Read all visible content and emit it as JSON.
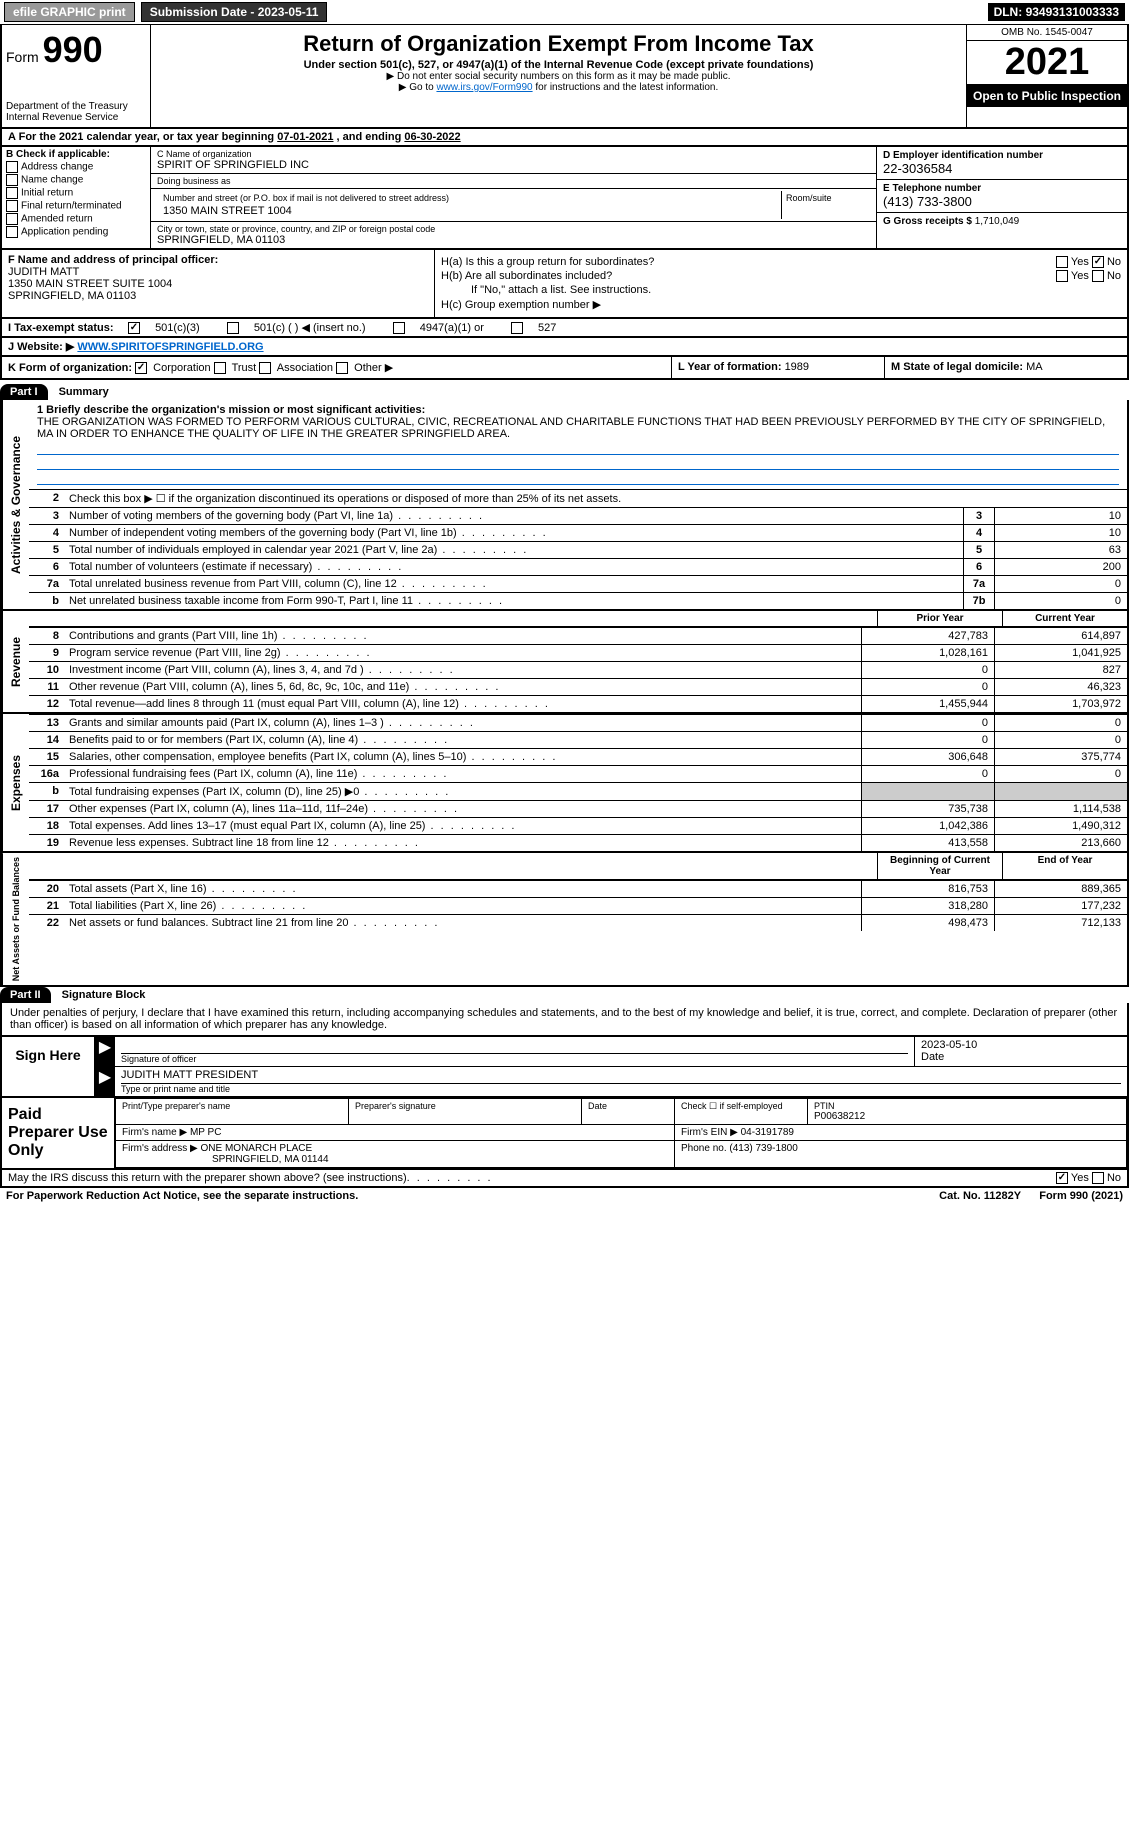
{
  "topbar": {
    "efile": "efile GRAPHIC print",
    "submission_label": "Submission Date - ",
    "submission_date": "2023-05-11",
    "dln_label": "DLN: ",
    "dln": "93493131003333"
  },
  "header": {
    "form_label": "Form",
    "form_number": "990",
    "dept": "Department of the Treasury",
    "irs": "Internal Revenue Service",
    "title": "Return of Organization Exempt From Income Tax",
    "subtitle": "Under section 501(c), 527, or 4947(a)(1) of the Internal Revenue Code (except private foundations)",
    "note1": "▶ Do not enter social security numbers on this form as it may be made public.",
    "note2_pre": "▶ Go to ",
    "note2_link": "www.irs.gov/Form990",
    "note2_post": " for instructions and the latest information.",
    "omb": "OMB No. 1545-0047",
    "year": "2021",
    "open": "Open to Public Inspection"
  },
  "taxyear": {
    "text_pre": "For the 2021 calendar year, or tax year beginning ",
    "begin": "07-01-2021",
    "text_mid": " , and ending ",
    "end": "06-30-2022"
  },
  "boxB": {
    "label": "B Check if applicable:",
    "opts": [
      "Address change",
      "Name change",
      "Initial return",
      "Final return/terminated",
      "Amended return",
      "Application pending"
    ]
  },
  "boxC": {
    "name_label": "C Name of organization",
    "name": "SPIRIT OF SPRINGFIELD INC",
    "dba_label": "Doing business as",
    "dba": "",
    "street_label": "Number and street (or P.O. box if mail is not delivered to street address)",
    "street": "1350 MAIN STREET 1004",
    "room_label": "Room/suite",
    "city_label": "City or town, state or province, country, and ZIP or foreign postal code",
    "city": "SPRINGFIELD, MA  01103"
  },
  "boxD": {
    "label": "D Employer identification number",
    "value": "22-3036584"
  },
  "boxE": {
    "label": "E Telephone number",
    "value": "(413) 733-3800"
  },
  "boxG": {
    "label": "G Gross receipts $ ",
    "value": "1,710,049"
  },
  "boxF": {
    "label": "F Name and address of principal officer:",
    "name": "JUDITH MATT",
    "addr1": "1350 MAIN STREET SUITE 1004",
    "addr2": "SPRINGFIELD, MA  01103"
  },
  "boxH": {
    "a": "H(a)  Is this a group return for subordinates?",
    "a_yes": "Yes",
    "a_no": "No",
    "b": "H(b)  Are all subordinates included?",
    "b_yes": "Yes",
    "b_no": "No",
    "b_note": "If \"No,\" attach a list. See instructions.",
    "c": "H(c)  Group exemption number ▶"
  },
  "boxI": {
    "label": "I  Tax-exempt status:",
    "opt1": "501(c)(3)",
    "opt2": "501(c) (  ) ◀ (insert no.)",
    "opt3": "4947(a)(1) or",
    "opt4": "527"
  },
  "boxJ": {
    "label": "J  Website: ▶",
    "value": "WWW.SPIRITOFSPRINGFIELD.ORG"
  },
  "boxK": {
    "label": "K Form of organization:",
    "opts": [
      "Corporation",
      "Trust",
      "Association",
      "Other ▶"
    ]
  },
  "boxL": {
    "label": "L Year of formation: ",
    "value": "1989"
  },
  "boxM": {
    "label": "M State of legal domicile: ",
    "value": "MA"
  },
  "part1": {
    "tab": "Part I",
    "title": "Summary",
    "mission_label": "1 Briefly describe the organization's mission or most significant activities:",
    "mission": "THE ORGANIZATION WAS FORMED TO PERFORM VARIOUS CULTURAL, CIVIC, RECREATIONAL AND CHARITABLE FUNCTIONS THAT HAD BEEN PREVIOUSLY PERFORMED BY THE CITY OF SPRINGFIELD, MA IN ORDER TO ENHANCE THE QUALITY OF LIFE IN THE GREATER SPRINGFIELD AREA.",
    "line2": "Check this box ▶ ☐ if the organization discontinued its operations or disposed of more than 25% of its net assets.",
    "gov_label": "Activities & Governance",
    "lines_gov": [
      {
        "n": "3",
        "d": "Number of voting members of the governing body (Part VI, line 1a)",
        "box": "3",
        "v": "10"
      },
      {
        "n": "4",
        "d": "Number of independent voting members of the governing body (Part VI, line 1b)",
        "box": "4",
        "v": "10"
      },
      {
        "n": "5",
        "d": "Total number of individuals employed in calendar year 2021 (Part V, line 2a)",
        "box": "5",
        "v": "63"
      },
      {
        "n": "6",
        "d": "Total number of volunteers (estimate if necessary)",
        "box": "6",
        "v": "200"
      },
      {
        "n": "7a",
        "d": "Total unrelated business revenue from Part VIII, column (C), line 12",
        "box": "7a",
        "v": "0"
      },
      {
        "n": "b",
        "d": "Net unrelated business taxable income from Form 990-T, Part I, line 11",
        "box": "7b",
        "v": "0"
      }
    ],
    "rev_label": "Revenue",
    "prior_hdr": "Prior Year",
    "current_hdr": "Current Year",
    "lines_rev": [
      {
        "n": "8",
        "d": "Contributions and grants (Part VIII, line 1h)",
        "p": "427,783",
        "c": "614,897"
      },
      {
        "n": "9",
        "d": "Program service revenue (Part VIII, line 2g)",
        "p": "1,028,161",
        "c": "1,041,925"
      },
      {
        "n": "10",
        "d": "Investment income (Part VIII, column (A), lines 3, 4, and 7d )",
        "p": "0",
        "c": "827"
      },
      {
        "n": "11",
        "d": "Other revenue (Part VIII, column (A), lines 5, 6d, 8c, 9c, 10c, and 11e)",
        "p": "0",
        "c": "46,323"
      },
      {
        "n": "12",
        "d": "Total revenue—add lines 8 through 11 (must equal Part VIII, column (A), line 12)",
        "p": "1,455,944",
        "c": "1,703,972"
      }
    ],
    "exp_label": "Expenses",
    "lines_exp": [
      {
        "n": "13",
        "d": "Grants and similar amounts paid (Part IX, column (A), lines 1–3 )",
        "p": "0",
        "c": "0"
      },
      {
        "n": "14",
        "d": "Benefits paid to or for members (Part IX, column (A), line 4)",
        "p": "0",
        "c": "0"
      },
      {
        "n": "15",
        "d": "Salaries, other compensation, employee benefits (Part IX, column (A), lines 5–10)",
        "p": "306,648",
        "c": "375,774"
      },
      {
        "n": "16a",
        "d": "Professional fundraising fees (Part IX, column (A), line 11e)",
        "p": "0",
        "c": "0"
      },
      {
        "n": "b",
        "d": "Total fundraising expenses (Part IX, column (D), line 25) ▶0",
        "p": "",
        "c": "",
        "shaded": true
      },
      {
        "n": "17",
        "d": "Other expenses (Part IX, column (A), lines 11a–11d, 11f–24e)",
        "p": "735,738",
        "c": "1,114,538"
      },
      {
        "n": "18",
        "d": "Total expenses. Add lines 13–17 (must equal Part IX, column (A), line 25)",
        "p": "1,042,386",
        "c": "1,490,312"
      },
      {
        "n": "19",
        "d": "Revenue less expenses. Subtract line 18 from line 12",
        "p": "413,558",
        "c": "213,660"
      }
    ],
    "net_label": "Net Assets or Fund Balances",
    "begin_hdr": "Beginning of Current Year",
    "end_hdr": "End of Year",
    "lines_net": [
      {
        "n": "20",
        "d": "Total assets (Part X, line 16)",
        "p": "816,753",
        "c": "889,365"
      },
      {
        "n": "21",
        "d": "Total liabilities (Part X, line 26)",
        "p": "318,280",
        "c": "177,232"
      },
      {
        "n": "22",
        "d": "Net assets or fund balances. Subtract line 21 from line 20",
        "p": "498,473",
        "c": "712,133"
      }
    ]
  },
  "part2": {
    "tab": "Part II",
    "title": "Signature Block",
    "declaration": "Under penalties of perjury, I declare that I have examined this return, including accompanying schedules and statements, and to the best of my knowledge and belief, it is true, correct, and complete. Declaration of preparer (other than officer) is based on all information of which preparer has any knowledge."
  },
  "sign": {
    "label": "Sign Here",
    "sig_label": "Signature of officer",
    "date": "2023-05-10",
    "date_label": "Date",
    "name": "JUDITH MATT PRESIDENT",
    "name_label": "Type or print name and title"
  },
  "paid": {
    "label": "Paid Preparer Use Only",
    "h1": "Print/Type preparer's name",
    "h2": "Preparer's signature",
    "h3": "Date",
    "h4_pre": "Check ☐ if self-employed",
    "h5": "PTIN",
    "ptin": "P00638212",
    "firm_label": "Firm's name  ▶ ",
    "firm": "MP PC",
    "ein_label": "Firm's EIN ▶ ",
    "ein": "04-3191789",
    "addr_label": "Firm's address ▶ ",
    "addr1": "ONE MONARCH PLACE",
    "addr2": "SPRINGFIELD, MA  01144",
    "phone_label": "Phone no. ",
    "phone": "(413) 739-1800"
  },
  "discuss": {
    "text": "May the IRS discuss this return with the preparer shown above? (see instructions)",
    "yes": "Yes",
    "no": "No"
  },
  "footer": {
    "left": "For Paperwork Reduction Act Notice, see the separate instructions.",
    "mid": "Cat. No. 11282Y",
    "right": "Form 990 (2021)"
  }
}
